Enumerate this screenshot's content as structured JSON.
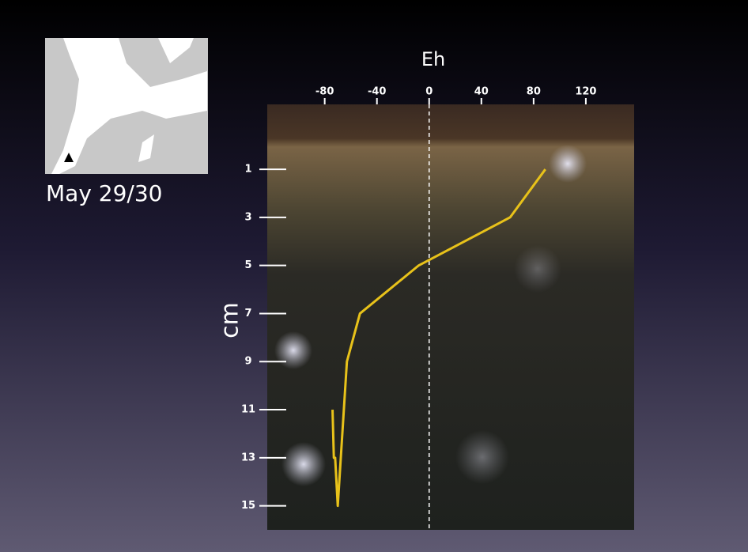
{
  "chart_data": {
    "type": "line",
    "title": "Eh",
    "ylabel": "cm",
    "annotation": "May 29/30",
    "xlim": [
      -124,
      157
    ],
    "ylim": [
      -1.7,
      16
    ],
    "y_inverted": true,
    "xticks": [
      -80,
      -40,
      0,
      40,
      80,
      120
    ],
    "yticks": [
      1,
      3,
      5,
      7,
      9,
      11,
      13,
      15
    ],
    "zero_line": true,
    "series": [
      {
        "color": "#e8c21a",
        "x": [
          89,
          62,
          -8,
          -53,
          -63,
          -70,
          -72,
          -73,
          -74
        ],
        "y": [
          1,
          3,
          5,
          7,
          9,
          15,
          13,
          13,
          11
        ]
      }
    ]
  }
}
